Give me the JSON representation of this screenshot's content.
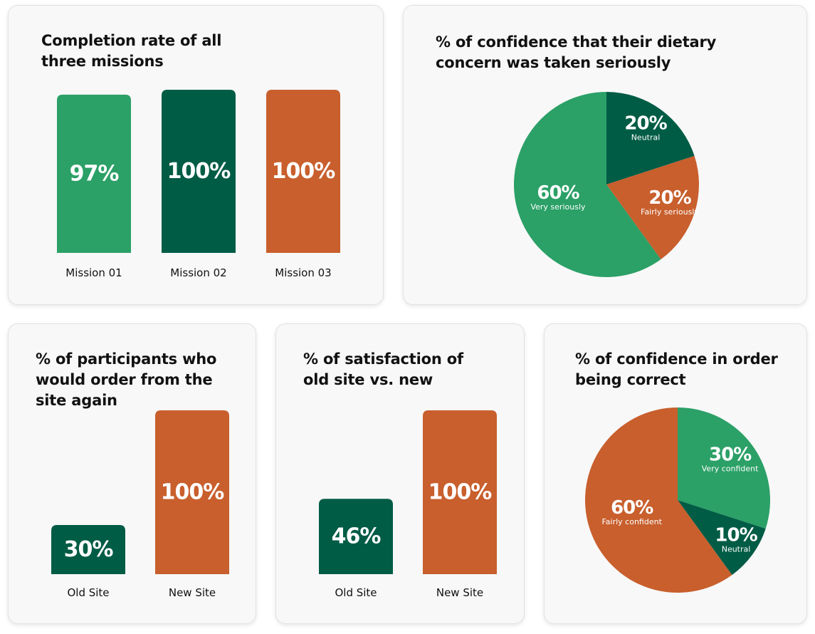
{
  "colors": {
    "light_green": "#2ba067",
    "dark_green": "#005c45",
    "orange": "#c85f2d"
  },
  "chart_data": [
    {
      "type": "bar",
      "title": "Completion rate of all three missions",
      "categories": [
        "Mission 01",
        "Mission 02",
        "Mission 03"
      ],
      "values": [
        97,
        100,
        100
      ],
      "labels": [
        "97%",
        "100%",
        "100%"
      ],
      "colors": [
        "#2ba067",
        "#005c45",
        "#c85f2d"
      ],
      "ylim": [
        0,
        100
      ],
      "unit": "%"
    },
    {
      "type": "pie",
      "title": "% of confidence that their dietary concern was taken seriously",
      "slices": [
        {
          "name": "Neutral",
          "value": 20,
          "label": "20%",
          "color": "#005c45"
        },
        {
          "name": "Fairly seriously",
          "value": 20,
          "label": "20%",
          "color": "#c85f2d"
        },
        {
          "name": "Very seriously",
          "value": 60,
          "label": "60%",
          "color": "#2ba067"
        }
      ]
    },
    {
      "type": "bar",
      "title": "% of participants who would order from the site again",
      "categories": [
        "Old Site",
        "New Site"
      ],
      "values": [
        30,
        100
      ],
      "labels": [
        "30%",
        "100%"
      ],
      "colors": [
        "#005c45",
        "#c85f2d"
      ],
      "ylim": [
        0,
        100
      ],
      "unit": "%"
    },
    {
      "type": "bar",
      "title": "% of satisfaction of old site vs. new",
      "categories": [
        "Old Site",
        "New Site"
      ],
      "values": [
        46,
        100
      ],
      "labels": [
        "46%",
        "100%"
      ],
      "colors": [
        "#005c45",
        "#c85f2d"
      ],
      "ylim": [
        0,
        100
      ],
      "unit": "%"
    },
    {
      "type": "pie",
      "title": "% of confidence in order being correct",
      "slices": [
        {
          "name": "Very confident",
          "value": 30,
          "label": "30%",
          "color": "#2ba067"
        },
        {
          "name": "Neutral",
          "value": 10,
          "label": "10%",
          "color": "#005c45"
        },
        {
          "name": "Fairly confident",
          "value": 60,
          "label": "60%",
          "color": "#c85f2d"
        }
      ]
    }
  ]
}
